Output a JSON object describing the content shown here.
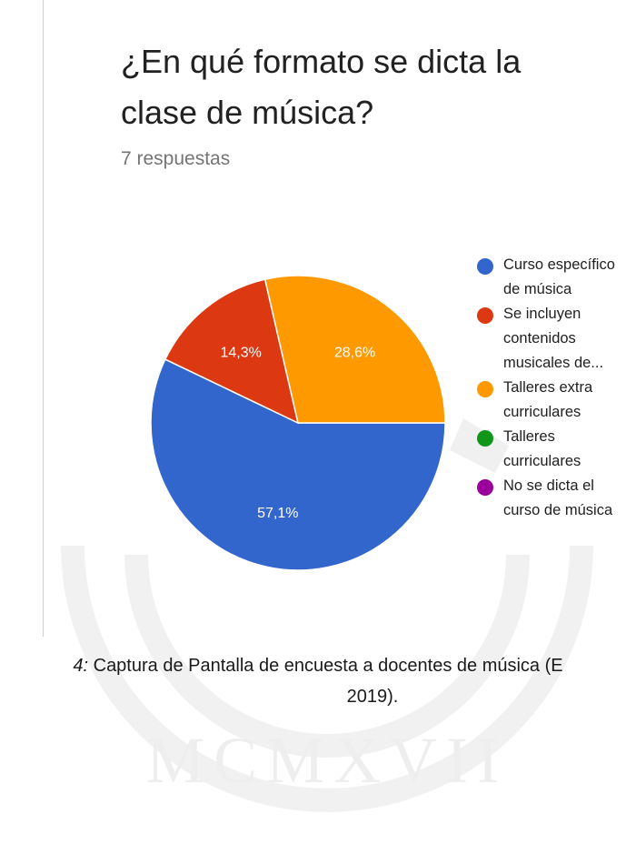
{
  "survey": {
    "title": "¿En qué formato se dicta la clase de música?",
    "response_count": "7 respuestas"
  },
  "colors": {
    "blue": "#3366cc",
    "red": "#dc3912",
    "orange": "#ff9900",
    "green": "#109618",
    "purple": "#990099"
  },
  "chart_data": {
    "type": "pie",
    "title": "",
    "unit": "%",
    "slices": [
      {
        "label": "Curso específico de música",
        "value": 57.1,
        "display": "57,1%",
        "color": "#3366cc"
      },
      {
        "label": "Se incluyen contenidos musicales de...",
        "value": 14.3,
        "display": "14,3%",
        "color": "#dc3912"
      },
      {
        "label": "Talleres extra curriculares",
        "value": 28.6,
        "display": "28,6%",
        "color": "#ff9900"
      },
      {
        "label": "Talleres curriculares",
        "value": 0,
        "display": "",
        "color": "#109618"
      },
      {
        "label": "No se dicta el curso de música",
        "value": 0,
        "display": "",
        "color": "#990099"
      }
    ],
    "legend_position": "right"
  },
  "caption": {
    "prefix": "4:",
    "line1": " Captura de Pantalla de encuesta a docentes de música (E",
    "line2": "2019)."
  }
}
